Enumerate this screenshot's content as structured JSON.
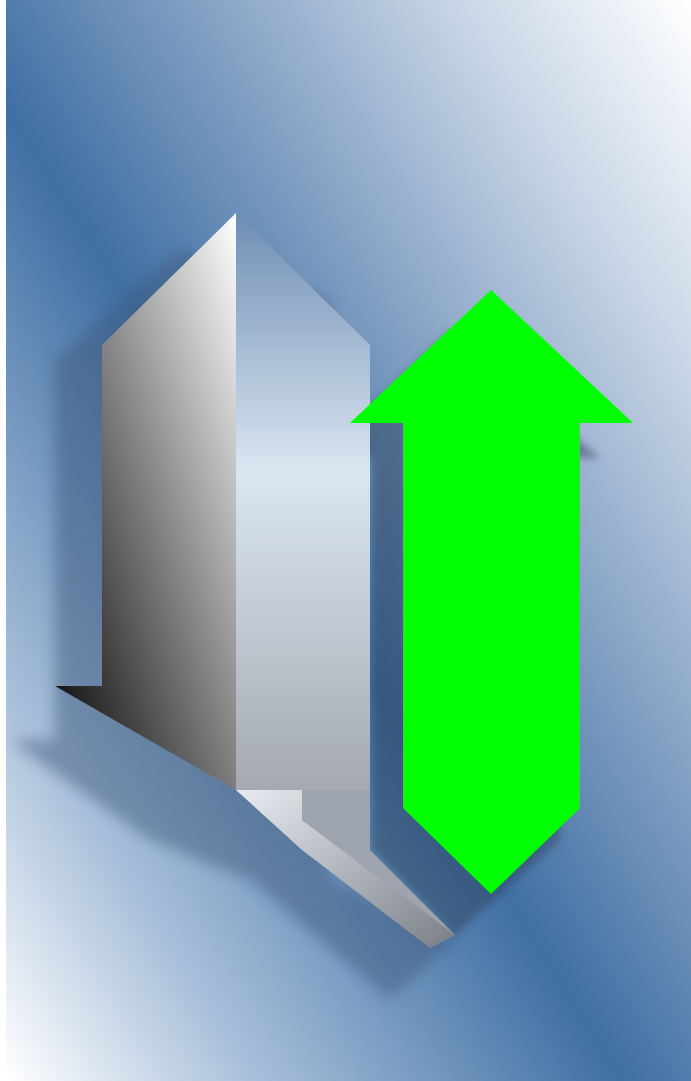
{
  "scene": {
    "description_icons": [
      "gray-down-arrow-icon",
      "green-up-arrow-icon"
    ],
    "colors": {
      "background_light": "#ffffff",
      "background_dark": "#2f6399",
      "up_arrow": "#00ff00",
      "down_arrow_dark": "#000000",
      "down_arrow_light": "#ffffff",
      "shadow": "#4a5f7a"
    }
  }
}
